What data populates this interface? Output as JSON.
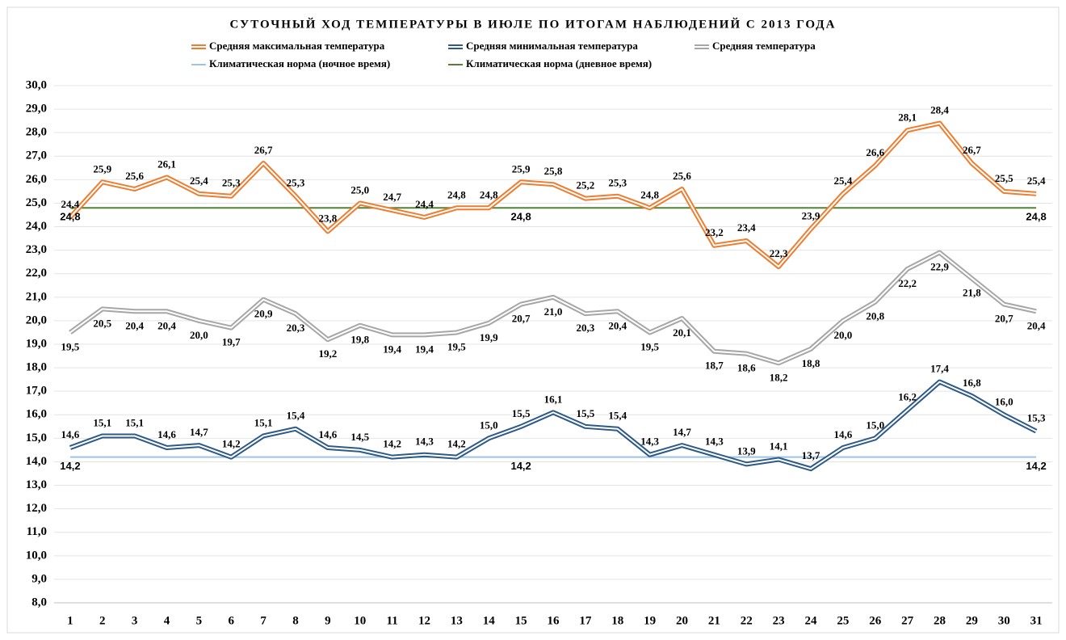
{
  "chart_data": {
    "type": "line",
    "title": "СУТОЧНЫЙ ХОД ТЕМПЕРАТУРЫ В ИЮЛЕ ПО ИТОГАМ НАБЛЮДЕНИЙ С 2013 ГОДА",
    "categories": [
      "1",
      "2",
      "3",
      "4",
      "5",
      "6",
      "7",
      "8",
      "9",
      "10",
      "11",
      "12",
      "13",
      "14",
      "15",
      "16",
      "17",
      "18",
      "19",
      "20",
      "21",
      "22",
      "23",
      "24",
      "25",
      "26",
      "27",
      "28",
      "29",
      "30",
      "31"
    ],
    "ylim": [
      8,
      30
    ],
    "yticks": [
      {
        "value": 8,
        "label": "8,0"
      },
      {
        "value": 9,
        "label": "9,0"
      },
      {
        "value": 10,
        "label": "10,0"
      },
      {
        "value": 11,
        "label": "11,0"
      },
      {
        "value": 12,
        "label": "12,0"
      },
      {
        "value": 13,
        "label": "13,0"
      },
      {
        "value": 14,
        "label": "14,0"
      },
      {
        "value": 15,
        "label": "15,0"
      },
      {
        "value": 16,
        "label": "16,0"
      },
      {
        "value": 17,
        "label": "17,0"
      },
      {
        "value": 18,
        "label": "18,0"
      },
      {
        "value": 19,
        "label": "19,0"
      },
      {
        "value": 20,
        "label": "20,0"
      },
      {
        "value": 21,
        "label": "21,0"
      },
      {
        "value": 22,
        "label": "22,0"
      },
      {
        "value": 23,
        "label": "23,0"
      },
      {
        "value": 24,
        "label": "24,0"
      },
      {
        "value": 25,
        "label": "25,0"
      },
      {
        "value": 26,
        "label": "26,0"
      },
      {
        "value": 27,
        "label": "27,0"
      },
      {
        "value": 28,
        "label": "28,0"
      },
      {
        "value": 29,
        "label": "29,0"
      },
      {
        "value": 30,
        "label": "30,0"
      }
    ],
    "grid": true,
    "series": [
      {
        "name": "Средняя максимальная температура",
        "color": "#ed7d31",
        "values": [
          24.4,
          25.9,
          25.6,
          26.1,
          25.4,
          25.3,
          26.7,
          25.3,
          23.8,
          25.0,
          24.7,
          24.4,
          24.8,
          24.8,
          25.9,
          25.8,
          25.2,
          25.3,
          24.8,
          25.6,
          23.2,
          23.4,
          22.3,
          23.9,
          25.4,
          26.6,
          28.1,
          28.4,
          26.7,
          25.5,
          25.4
        ],
        "value_labels": [
          "24,4",
          "25,9",
          "25,6",
          "26,1",
          "25,4",
          "25,3",
          "26,7",
          "25,3",
          "23,8",
          "25,0",
          "24,7",
          "24,4",
          "24,8",
          "24,8",
          "25,9",
          "25,8",
          "25,2",
          "25,3",
          "24,8",
          "25,6",
          "23,2",
          "23,4",
          "22,3",
          "23,9",
          "25,4",
          "26,6",
          "28,1",
          "28,4",
          "26,7",
          "25,5",
          "25,4"
        ]
      },
      {
        "name": "Средняя минимальная температура",
        "color": "#2e5a87",
        "values": [
          14.6,
          15.1,
          15.1,
          14.6,
          14.7,
          14.2,
          15.1,
          15.4,
          14.6,
          14.5,
          14.2,
          14.3,
          14.2,
          15.0,
          15.5,
          16.1,
          15.5,
          15.4,
          14.3,
          14.7,
          14.3,
          13.9,
          14.1,
          13.7,
          14.6,
          15.0,
          16.2,
          17.4,
          16.8,
          16.0,
          15.3
        ],
        "value_labels": [
          "14,6",
          "15,1",
          "15,1",
          "14,6",
          "14,7",
          "14,2",
          "15,1",
          "15,4",
          "14,6",
          "14,5",
          "14,2",
          "14,3",
          "14,2",
          "15,0",
          "15,5",
          "16,1",
          "15,5",
          "15,4",
          "14,3",
          "14,7",
          "14,3",
          "13,9",
          "14,1",
          "13,7",
          "14,6",
          "15,0",
          "16,2",
          "17,4",
          "16,8",
          "16,0",
          "15,3"
        ]
      },
      {
        "name": "Средняя температура",
        "color": "#a6a6a6",
        "values": [
          19.5,
          20.5,
          20.4,
          20.4,
          20.0,
          19.7,
          20.9,
          20.3,
          19.2,
          19.8,
          19.4,
          19.4,
          19.5,
          19.9,
          20.7,
          21.0,
          20.3,
          20.4,
          19.5,
          20.1,
          18.7,
          18.6,
          18.2,
          18.8,
          20.0,
          20.8,
          22.2,
          22.9,
          21.8,
          20.7,
          20.4
        ],
        "value_labels": [
          "19,5",
          "20,5",
          "20,4",
          "20,4",
          "20,0",
          "19,7",
          "20,9",
          "20,3",
          "19,2",
          "19,8",
          "19,4",
          "19,4",
          "19,5",
          "19,9",
          "20,7",
          "21,0",
          "20,3",
          "20,4",
          "19,5",
          "20,1",
          "18,7",
          "18,6",
          "18,2",
          "18,8",
          "20,0",
          "20,8",
          "22,2",
          "22,9",
          "21,8",
          "20,7",
          "20,4"
        ]
      },
      {
        "name": "Климатическая норма (ночное время)",
        "color": "#9dc3e6",
        "values": [
          14.2,
          14.2,
          14.2,
          14.2,
          14.2,
          14.2,
          14.2,
          14.2,
          14.2,
          14.2,
          14.2,
          14.2,
          14.2,
          14.2,
          14.2,
          14.2,
          14.2,
          14.2,
          14.2,
          14.2,
          14.2,
          14.2,
          14.2,
          14.2,
          14.2,
          14.2,
          14.2,
          14.2,
          14.2,
          14.2,
          14.2
        ],
        "value_labels": [
          "14,2",
          null,
          null,
          null,
          null,
          null,
          null,
          null,
          null,
          null,
          null,
          null,
          null,
          null,
          "14,2",
          null,
          null,
          null,
          null,
          null,
          null,
          null,
          null,
          null,
          null,
          null,
          null,
          null,
          null,
          null,
          "14,2"
        ]
      },
      {
        "name": "Климатическая норма (дневное время)",
        "color": "#548235",
        "values": [
          24.8,
          24.8,
          24.8,
          24.8,
          24.8,
          24.8,
          24.8,
          24.8,
          24.8,
          24.8,
          24.8,
          24.8,
          24.8,
          24.8,
          24.8,
          24.8,
          24.8,
          24.8,
          24.8,
          24.8,
          24.8,
          24.8,
          24.8,
          24.8,
          24.8,
          24.8,
          24.8,
          24.8,
          24.8,
          24.8,
          24.8
        ],
        "value_labels": [
          "24,8",
          null,
          null,
          null,
          null,
          null,
          null,
          null,
          null,
          null,
          null,
          null,
          null,
          null,
          "24,8",
          null,
          null,
          null,
          null,
          null,
          null,
          null,
          null,
          null,
          null,
          null,
          null,
          null,
          null,
          null,
          "24,8"
        ]
      }
    ]
  }
}
